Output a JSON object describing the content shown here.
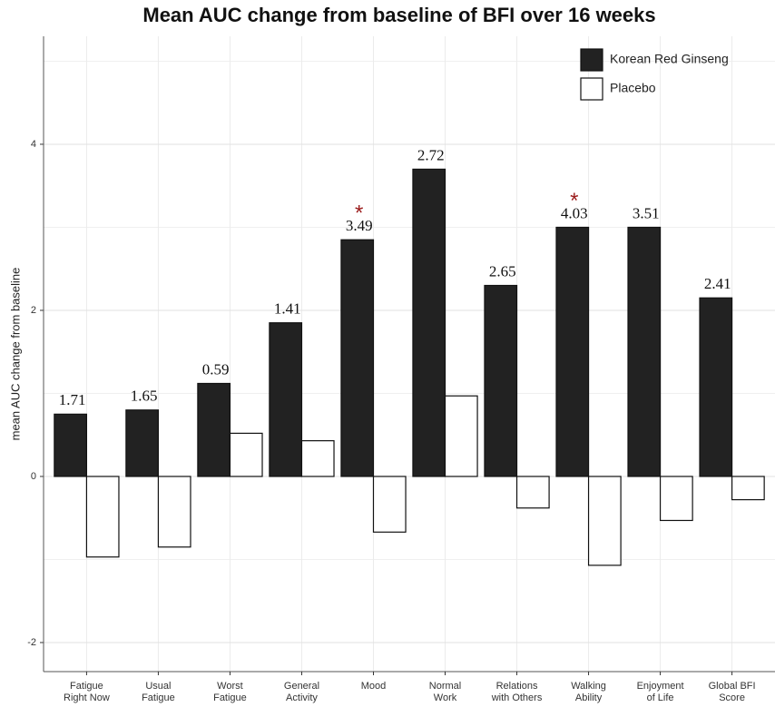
{
  "chart_data": {
    "type": "bar",
    "title": "Mean AUC change from baseline of BFI over 16 weeks",
    "y_label": "mean AUC change from baseline",
    "categories": [
      [
        "Fatigue",
        "Right Now"
      ],
      [
        "Usual",
        "Fatigue"
      ],
      [
        "Worst",
        "Fatigue"
      ],
      [
        "General",
        "Activity"
      ],
      [
        "Mood"
      ],
      [
        "Normal",
        "Work"
      ],
      [
        "Relations",
        "with Others"
      ],
      [
        "Walking",
        "Ability"
      ],
      [
        "Enjoyment",
        "of Life"
      ],
      [
        "Global BFI",
        "Score"
      ]
    ],
    "series": [
      {
        "name": "Korean Red Ginseng",
        "color": "#222222",
        "values": [
          0.75,
          0.8,
          1.12,
          1.85,
          2.85,
          3.7,
          2.3,
          3.0,
          3.0,
          2.15
        ]
      },
      {
        "name": "Placebo",
        "color": "#ffffff",
        "values": [
          -0.97,
          -0.85,
          0.52,
          0.43,
          -0.67,
          0.97,
          -0.38,
          -1.07,
          -0.53,
          -0.28
        ]
      }
    ],
    "bar_annotations": [
      "1.71",
      "1.65",
      "0.59",
      "1.41",
      "3.49",
      "2.72",
      "2.65",
      "4.03",
      "3.51",
      "2.41"
    ],
    "significance_markers": [
      null,
      null,
      null,
      null,
      "*",
      null,
      null,
      "*",
      null,
      null
    ],
    "ylim": [
      -2.35,
      5.3
    ],
    "yticks": [
      -2,
      0,
      2,
      4
    ],
    "y_minor_gridlines": [
      -1,
      1,
      3,
      5
    ],
    "grid": true,
    "legend_position": "top-right"
  }
}
